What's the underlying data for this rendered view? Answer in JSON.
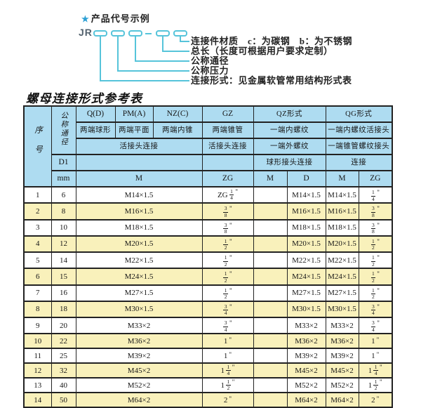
{
  "diagram": {
    "star": "★",
    "title": "产品代号示例",
    "code_prefix": "JR",
    "labels": [
      "连接件材质　c：为碳钢　b：为不锈钢",
      "总长（长度可根据用户要求定制）",
      "公称通径",
      "公称压力",
      "连接形式：见金属软管常用结构形式表"
    ],
    "accent_color": "#56c4da",
    "star_color": "#2b9fd4"
  },
  "table_title": "螺母连接形式参考表",
  "table": {
    "colors": {
      "header_bg": "#aedcf1",
      "row_alt_bg": "#f9f1bb",
      "row_bg": "#ffffff",
      "border": "#222222"
    },
    "inch_mark": "\"",
    "header": {
      "sn": "序号",
      "dn": "公称通径",
      "d1": "D1",
      "mm": "mm",
      "q": "Q(D)",
      "pm": "PM(A)",
      "nz": "NZ(C)",
      "gz": "GZ",
      "qz": "QZ形式",
      "qg": "QG形式",
      "q_desc": "两端球形",
      "pm_desc": "两端平面",
      "nz_desc": "两端内锥",
      "gz_desc": "两端锥管",
      "qz_desc1": "一端内螺纹",
      "qg_desc1": "一端内螺纹活接头",
      "union_conn": "活接头连接",
      "gz_conn": "活接头连接",
      "qz_desc2": "一端外螺纹",
      "qg_desc2": "一端锥管螺纹接头",
      "qz_conn": "球形接头连接",
      "qg_conn": "连接",
      "m_label": "M",
      "zg_label": "ZG",
      "qz_m": "M",
      "qz_d": "D",
      "qg_m": "M",
      "qg_zg": "ZG"
    },
    "rows": [
      {
        "no": "1",
        "dn": "6",
        "m": "M14×1.5",
        "gz": {
          "pre": "ZG",
          "whole": "",
          "num": "1",
          "den": "4"
        },
        "qz_m": "",
        "qz_d": "M14×1.5",
        "qg_m": "M14×1.5",
        "qg": {
          "pre": "",
          "whole": "",
          "num": "1",
          "den": "4"
        }
      },
      {
        "no": "2",
        "dn": "8",
        "m": "M16×1.5",
        "gz": {
          "pre": "",
          "whole": "",
          "num": "3",
          "den": "8"
        },
        "qz_m": "",
        "qz_d": "M16×1.5",
        "qg_m": "M16×1.5",
        "qg": {
          "pre": "",
          "whole": "",
          "num": "3",
          "den": "8"
        }
      },
      {
        "no": "3",
        "dn": "10",
        "m": "M18×1.5",
        "gz": {
          "pre": "",
          "whole": "",
          "num": "3",
          "den": "8"
        },
        "qz_m": "",
        "qz_d": "M18×1.5",
        "qg_m": "M18×1.5",
        "qg": {
          "pre": "",
          "whole": "",
          "num": "3",
          "den": "8"
        }
      },
      {
        "no": "4",
        "dn": "12",
        "m": "M20×1.5",
        "gz": {
          "pre": "",
          "whole": "",
          "num": "1",
          "den": "2"
        },
        "qz_m": "",
        "qz_d": "M20×1.5",
        "qg_m": "M20×1.5",
        "qg": {
          "pre": "",
          "whole": "",
          "num": "1",
          "den": "2"
        }
      },
      {
        "no": "5",
        "dn": "14",
        "m": "M22×1.5",
        "gz": {
          "pre": "",
          "whole": "",
          "num": "1",
          "den": "2"
        },
        "qz_m": "",
        "qz_d": "M22×1.5",
        "qg_m": "M22×1.5",
        "qg": {
          "pre": "",
          "whole": "",
          "num": "1",
          "den": "2"
        }
      },
      {
        "no": "6",
        "dn": "15",
        "m": "M24×1.5",
        "gz": {
          "pre": "",
          "whole": "",
          "num": "1",
          "den": "2"
        },
        "qz_m": "",
        "qz_d": "M24×1.5",
        "qg_m": "M24×1.5",
        "qg": {
          "pre": "",
          "whole": "",
          "num": "1",
          "den": "2"
        }
      },
      {
        "no": "7",
        "dn": "16",
        "m": "M27×1.5",
        "gz": {
          "pre": "",
          "whole": "",
          "num": "1",
          "den": "2"
        },
        "qz_m": "",
        "qz_d": "M27×1.5",
        "qg_m": "M27×1.5",
        "qg": {
          "pre": "",
          "whole": "",
          "num": "1",
          "den": "2"
        }
      },
      {
        "no": "8",
        "dn": "18",
        "m": "M30×1.5",
        "gz": {
          "pre": "",
          "whole": "",
          "num": "3",
          "den": "4"
        },
        "qz_m": "",
        "qz_d": "M30×1.5",
        "qg_m": "M30×1.5",
        "qg": {
          "pre": "",
          "whole": "",
          "num": "3",
          "den": "4"
        }
      },
      {
        "no": "9",
        "dn": "20",
        "m": "M33×2",
        "gz": {
          "pre": "",
          "whole": "",
          "num": "3",
          "den": "4"
        },
        "qz_m": "",
        "qz_d": "M33×2",
        "qg_m": "M33×2",
        "qg": {
          "pre": "",
          "whole": "",
          "num": "3",
          "den": "4"
        }
      },
      {
        "no": "10",
        "dn": "22",
        "m": "M36×2",
        "gz": {
          "pre": "",
          "whole": "1",
          "num": "",
          "den": ""
        },
        "qz_m": "",
        "qz_d": "M36×2",
        "qg_m": "M36×2",
        "qg": {
          "pre": "",
          "whole": "1",
          "num": "",
          "den": ""
        }
      },
      {
        "no": "11",
        "dn": "25",
        "m": "M39×2",
        "gz": {
          "pre": "",
          "whole": "1",
          "num": "",
          "den": ""
        },
        "qz_m": "",
        "qz_d": "M39×2",
        "qg_m": "M39×2",
        "qg": {
          "pre": "",
          "whole": "1",
          "num": "",
          "den": ""
        }
      },
      {
        "no": "12",
        "dn": "32",
        "m": "M45×2",
        "gz": {
          "pre": "",
          "whole": "1",
          "num": "1",
          "den": "4"
        },
        "qz_m": "",
        "qz_d": "M45×2",
        "qg_m": "M45×2",
        "qg": {
          "pre": "",
          "whole": "1",
          "num": "1",
          "den": "4"
        }
      },
      {
        "no": "13",
        "dn": "40",
        "m": "M52×2",
        "gz": {
          "pre": "",
          "whole": "1",
          "num": "1",
          "den": "2"
        },
        "qz_m": "",
        "qz_d": "M52×2",
        "qg_m": "M52×2",
        "qg": {
          "pre": "",
          "whole": "1",
          "num": "1",
          "den": "2"
        }
      },
      {
        "no": "14",
        "dn": "50",
        "m": "M64×2",
        "gz": {
          "pre": "",
          "whole": "2",
          "num": "",
          "den": ""
        },
        "qz_m": "",
        "qz_d": "M64×2",
        "qg_m": "M64×2",
        "qg": {
          "pre": "",
          "whole": "2",
          "num": "",
          "den": ""
        }
      }
    ]
  }
}
